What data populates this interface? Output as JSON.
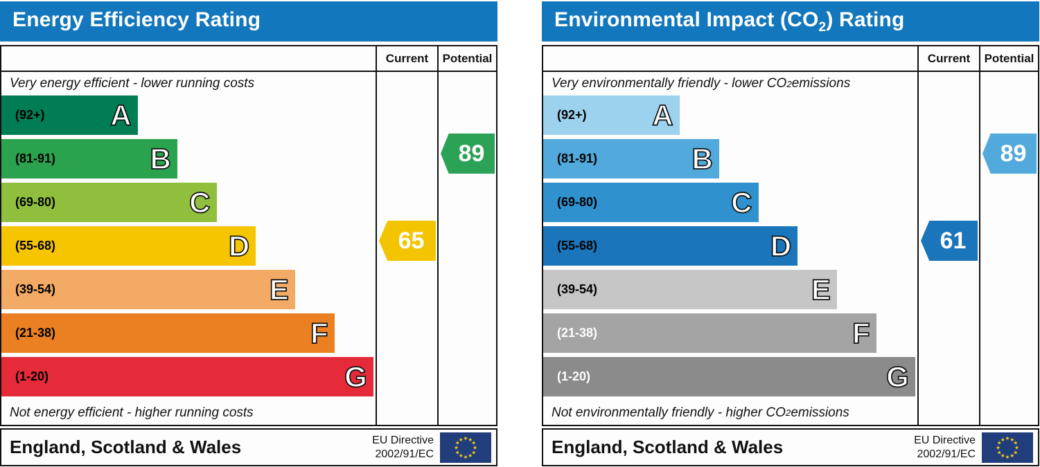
{
  "eu_flag": {
    "background": "#223d7c",
    "star_color": "#f8d012"
  },
  "panels": [
    {
      "title": {
        "pre": "Energy Efficiency Rating",
        "sub": "",
        "post": ""
      },
      "title_bar_color": "#1377bd",
      "columns": {
        "current": "Current",
        "potential": "Potential"
      },
      "top_caption": {
        "pre": "Very energy efficient - lower running costs",
        "sub": "",
        "post": ""
      },
      "bottom_caption": {
        "pre": "Not energy efficient - higher running costs",
        "sub": "",
        "post": ""
      },
      "bands": [
        {
          "range": "(92+)",
          "letter": "A",
          "color": "#007d54",
          "width_pct": 36.4,
          "range_color": "#000000"
        },
        {
          "range": "(81-91)",
          "letter": "B",
          "color": "#2ba24e",
          "width_pct": 47.0,
          "range_color": "#000000"
        },
        {
          "range": "(69-80)",
          "letter": "C",
          "color": "#90bf3e",
          "width_pct": 57.5,
          "range_color": "#000000"
        },
        {
          "range": "(55-68)",
          "letter": "D",
          "color": "#f5c500",
          "width_pct": 68.0,
          "range_color": "#000000"
        },
        {
          "range": "(39-54)",
          "letter": "E",
          "color": "#f2aa65",
          "width_pct": 78.5,
          "range_color": "#000000"
        },
        {
          "range": "(21-38)",
          "letter": "F",
          "color": "#ea8022",
          "width_pct": 89.0,
          "range_color": "#000000"
        },
        {
          "range": "(1-20)",
          "letter": "G",
          "color": "#e52a39",
          "width_pct": 99.4,
          "range_color": "#000000"
        }
      ],
      "current": {
        "value": "65",
        "band_index": 3,
        "color": "#f2c500"
      },
      "potential": {
        "value": "89",
        "band_index": 1,
        "color": "#2ba256"
      },
      "footer": {
        "region": "England, Scotland & Wales",
        "directive_line1": "EU Directive",
        "directive_line2": "2002/91/EC"
      }
    },
    {
      "title": {
        "pre": "Environmental Impact (CO",
        "sub": "2",
        "post": ") Rating"
      },
      "title_bar_color": "#1377bd",
      "columns": {
        "current": "Current",
        "potential": "Potential"
      },
      "top_caption": {
        "pre": "Very environmentally friendly - lower CO",
        "sub": "2",
        "post": " emissions"
      },
      "bottom_caption": {
        "pre": "Not environmentally friendly - higher CO",
        "sub": "2",
        "post": " emissions"
      },
      "bands": [
        {
          "range": "(92+)",
          "letter": "A",
          "color": "#9cd2ee",
          "width_pct": 36.4,
          "range_color": "#000000"
        },
        {
          "range": "(81-91)",
          "letter": "B",
          "color": "#52a9db",
          "width_pct": 47.0,
          "range_color": "#000000"
        },
        {
          "range": "(69-80)",
          "letter": "C",
          "color": "#2f92cf",
          "width_pct": 57.5,
          "range_color": "#000000"
        },
        {
          "range": "(55-68)",
          "letter": "D",
          "color": "#1a75bb",
          "width_pct": 68.0,
          "range_color": "#000000"
        },
        {
          "range": "(39-54)",
          "letter": "E",
          "color": "#c6c6c6",
          "width_pct": 78.5,
          "range_color": "#000000"
        },
        {
          "range": "(21-38)",
          "letter": "F",
          "color": "#a4a4a4",
          "width_pct": 89.0,
          "range_color": "#ffffff"
        },
        {
          "range": "(1-20)",
          "letter": "G",
          "color": "#8b8b8b",
          "width_pct": 99.4,
          "range_color": "#ffffff"
        }
      ],
      "current": {
        "value": "61",
        "band_index": 3,
        "color": "#1a75bb"
      },
      "potential": {
        "value": "89",
        "band_index": 1,
        "color": "#52a9db"
      },
      "footer": {
        "region": "England, Scotland & Wales",
        "directive_line1": "EU Directive",
        "directive_line2": "2002/91/EC"
      }
    }
  ],
  "chart_data": [
    {
      "type": "bar",
      "title": "Energy Efficiency Rating",
      "categories": [
        "A (92+)",
        "B (81-91)",
        "C (69-80)",
        "D (55-68)",
        "E (39-54)",
        "F (21-38)",
        "G (1-20)"
      ],
      "band_ranges": [
        [
          92,
          100
        ],
        [
          81,
          91
        ],
        [
          69,
          80
        ],
        [
          55,
          68
        ],
        [
          39,
          54
        ],
        [
          21,
          38
        ],
        [
          1,
          20
        ]
      ],
      "current_rating": 65,
      "current_band": "D",
      "potential_rating": 89,
      "potential_band": "B",
      "top_note": "Very energy efficient - lower running costs",
      "bottom_note": "Not energy efficient - higher running costs",
      "region": "England, Scotland & Wales",
      "directive": "EU Directive 2002/91/EC"
    },
    {
      "type": "bar",
      "title": "Environmental Impact (CO2) Rating",
      "categories": [
        "A (92+)",
        "B (81-91)",
        "C (69-80)",
        "D (55-68)",
        "E (39-54)",
        "F (21-38)",
        "G (1-20)"
      ],
      "band_ranges": [
        [
          92,
          100
        ],
        [
          81,
          91
        ],
        [
          69,
          80
        ],
        [
          55,
          68
        ],
        [
          39,
          54
        ],
        [
          21,
          38
        ],
        [
          1,
          20
        ]
      ],
      "current_rating": 61,
      "current_band": "D",
      "potential_rating": 89,
      "potential_band": "B",
      "top_note": "Very environmentally friendly - lower CO2 emissions",
      "bottom_note": "Not environmentally friendly - higher CO2 emissions",
      "region": "England, Scotland & Wales",
      "directive": "EU Directive 2002/91/EC"
    }
  ]
}
